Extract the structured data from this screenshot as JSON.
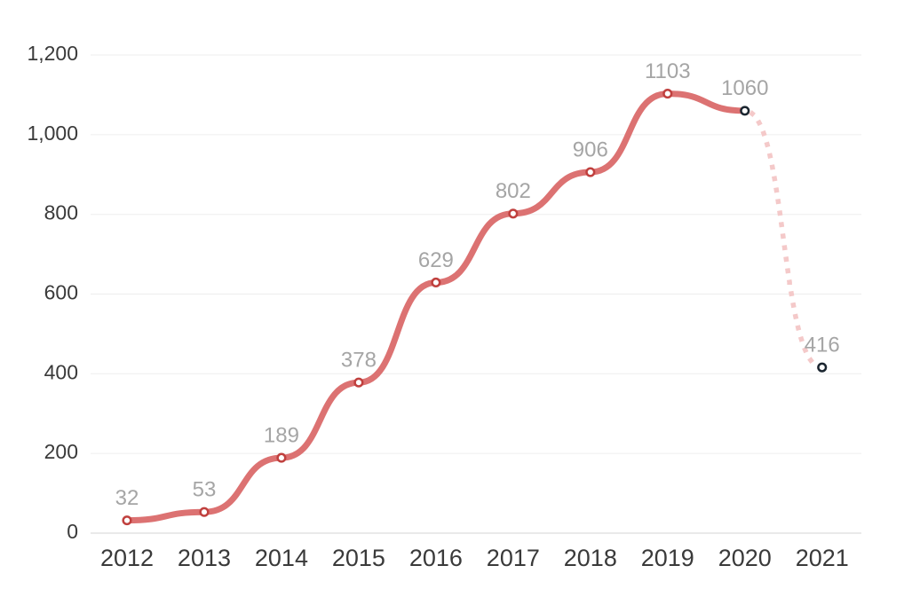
{
  "chart_data": {
    "type": "line",
    "title": "",
    "categories": [
      "2012",
      "2013",
      "2014",
      "2015",
      "2016",
      "2017",
      "2018",
      "2019",
      "2020",
      "2021"
    ],
    "values": [
      32,
      53,
      189,
      378,
      629,
      802,
      906,
      1103,
      1060,
      416
    ],
    "point_labels": [
      "32",
      "53",
      "189",
      "378",
      "629",
      "802",
      "906",
      "1103",
      "1060",
      "416"
    ],
    "series": [
      {
        "name": "solid-history",
        "style": "solid",
        "start_index": 0,
        "end_index": 8
      },
      {
        "name": "dotted-final-drop",
        "style": "dotted",
        "start_index": 8,
        "end_index": 9
      }
    ],
    "marker_styles": [
      "red",
      "red",
      "red",
      "red",
      "red",
      "red",
      "red",
      "red",
      "dark",
      "dark"
    ],
    "y_axis": {
      "min": 0,
      "max": 1200,
      "ticks": [
        {
          "value": 0,
          "label": "0"
        },
        {
          "value": 200,
          "label": "200"
        },
        {
          "value": 400,
          "label": "400"
        },
        {
          "value": 600,
          "label": "600"
        },
        {
          "value": 800,
          "label": "800"
        },
        {
          "value": 1000,
          "label": "1,000"
        },
        {
          "value": 1200,
          "label": "1,200"
        }
      ]
    },
    "grid": true,
    "legend": false,
    "colors": {
      "line": "#dc7272",
      "dotted": "#f4c9c9",
      "marker_red": "#c0403e",
      "marker_dark": "#1b2630",
      "marker_fill": "#ffffff",
      "point_label": "#a5a5a5",
      "axis_label": "#3a3a3a",
      "gridline": "#f0f0f0",
      "axis_line": "#dcdcdc"
    }
  }
}
